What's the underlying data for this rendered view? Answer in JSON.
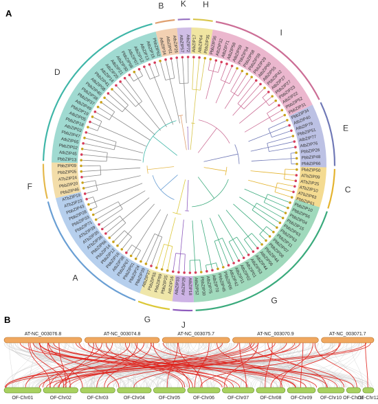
{
  "panels": {
    "a_label": "A",
    "b_label": "B"
  },
  "tree": {
    "clades": [
      {
        "id": "A",
        "start": 201,
        "end": 256,
        "color": "#6a9fd4",
        "bg": "#a9c7ea"
      },
      {
        "id": "F",
        "start": 256,
        "end": 271,
        "color": "#e5b84a",
        "bg": "#f1d79a"
      },
      {
        "id": "D",
        "start": 271,
        "end": 346,
        "color": "#3fb6a8",
        "bg": "#8fd4c9"
      },
      {
        "id": "B",
        "start": 346,
        "end": 355,
        "color": "#e0a070",
        "bg": "#f0c8a4"
      },
      {
        "id": "K",
        "start": 355,
        "end": 361,
        "color": "#9b77c4",
        "bg": "#c8b3e2"
      },
      {
        "id": "H",
        "start": 361,
        "end": 370,
        "color": "#d8c54a",
        "bg": "#ede090"
      },
      {
        "id": "I",
        "start": 370,
        "end": 424,
        "color": "#cc6e96",
        "bg": "#e8aac6"
      },
      {
        "id": "E",
        "start": 424,
        "end": 451,
        "color": "#6f78b6",
        "bg": "#b0b6df"
      },
      {
        "id": "C",
        "start": 451,
        "end": 468,
        "color": "#e4b32e",
        "bg": "#f2d57e"
      },
      {
        "id": "G_big",
        "start": 468,
        "end": 538,
        "color": "#3aaa7c",
        "bg": "#8fd2b0"
      },
      {
        "id": "J",
        "start": 538,
        "end": 547,
        "color": "#8e5bbd",
        "bg": "#c4a6e0"
      },
      {
        "id": "G",
        "start": 547,
        "end": 561,
        "color": "#dcc838",
        "bg": "#ece29a"
      }
    ],
    "clade_labels": [
      {
        "text": "A",
        "angle": 225
      },
      {
        "text": "F",
        "angle": 262
      },
      {
        "text": "D",
        "angle": 305
      },
      {
        "text": "B",
        "angle": 350
      },
      {
        "text": "K",
        "angle": 358
      },
      {
        "text": "H",
        "angle": 366
      },
      {
        "text": "I",
        "angle": 395
      },
      {
        "text": "E",
        "angle": 437
      },
      {
        "text": "C",
        "angle": 459
      },
      {
        "text": "G",
        "angle": 508
      },
      {
        "text": "J",
        "angle": 542
      },
      {
        "text": "G",
        "angle": 555
      }
    ],
    "genes": [
      "AtbZIP17",
      "AtbZIP64",
      "PbbZIP35",
      "PbbZIP36",
      "AtbZIP32",
      "AtbZIP71",
      "AtbZIP58",
      "AtbZIP59",
      "PbbZIP54",
      "PbbZIP58",
      "PbbZIP59",
      "PbbZIP29",
      "AtbZIP60",
      "AtbZIP55",
      "PbbZIP42",
      "AtbZIP27",
      "PbbZIP27",
      "PbbZIP23",
      "AtbZIP22",
      "PbbZIP52",
      "PbbZIP31",
      "PbbZIP34",
      "AtbZIP40",
      "AtbZIP79",
      "PbbZIP51",
      "AtbZIP77",
      "AtbZIP76",
      "PbbZIP26",
      "PbbZIP48",
      "PbbZIP66",
      "PbbZIP50",
      "ATbZIP09",
      "ATbZIP25",
      "ATbZIP10",
      "ATbZIP63",
      "PbbZIP61",
      "PbbZIP10",
      "PbbZIP56",
      "PbbZIP04",
      "PbbZIP15",
      "PbbZIP63",
      "PbbZIP53",
      "PbbZIP11",
      "PbbZIP07",
      "PbbZIP08",
      "PbbZIP44",
      "AtbZIP06",
      "AtbZIP44",
      "AtbZIP53",
      "AtbZIP01",
      "AtbZIP02",
      "AtbZIP11",
      "AtbZIP42",
      "PbbZIP06",
      "PbbZIP45",
      "AtbZIP70",
      "AtbZIP75",
      "PbbZIP30",
      "AtbZIP52",
      "AtbZIP18",
      "AtbZIP29",
      "AtbZIP33",
      "AtbZIP16",
      "PbbZIP25",
      "PbbZIP69",
      "PbbZIP55",
      "AtbZIP37",
      "PbbZIP39",
      "PbbZIP24",
      "PbbZIP01",
      "PbbZIP67",
      "AtbZIP38",
      "PbbZIP16",
      "PbbZIP12",
      "PbbZIP14",
      "PbbZIP66",
      "ATbZIP36",
      "ATbZIP35",
      "ATbZIP39",
      "PbbZIP71",
      "PbbZIP33",
      "PbbZIP28",
      "PbbZIP43",
      "ATbZIP23",
      "ATbZIP19",
      "PbbZIP46",
      "PbbZIP20",
      "ATbZIP24",
      "PbbZIP05",
      "PbbZIP09",
      "PbbZIP13",
      "AtbZIP45",
      "PbbZIP02",
      "AtbZIP65",
      "PbbZIP47",
      "AtbZIP03",
      "PbbZIP18",
      "AtbZIP05",
      "PbbZIP19",
      "AtbZIP49",
      "PbbZIP37",
      "PbbZIP38",
      "PbbZIP40",
      "AtbZIP08",
      "PbbZIP41",
      "AtbZIP14",
      "AtbZIP20",
      "AtbZIP21",
      "AtbZIP30",
      "PbbZIP68",
      "AtbZIP07",
      "AtbZIP12",
      "AtbZIP13",
      "AtbZIP15",
      "PbbZIP62",
      "AtbZIP34",
      "AtbZIP61",
      "AtbZIP26",
      "AtbZIP57",
      "AtbZIP72"
    ]
  },
  "synteny": {
    "top_chromosomes": [
      {
        "name": "AT-NC_003076.8",
        "start": 0.0,
        "end": 0.21
      },
      {
        "name": "AT-NC_003074.8",
        "start": 0.218,
        "end": 0.42
      },
      {
        "name": "AT-NC_003075.7",
        "start": 0.428,
        "end": 0.61
      },
      {
        "name": "AT-NC_003070.9",
        "start": 0.618,
        "end": 0.85
      },
      {
        "name": "AT-NC_003071.7",
        "start": 0.858,
        "end": 1.0
      }
    ],
    "bottom_chromosomes": [
      {
        "name": "OF-Chr01",
        "start": 0.0,
        "end": 0.1
      },
      {
        "name": "OF-Chr02",
        "start": 0.106,
        "end": 0.2
      },
      {
        "name": "OF-Chr03",
        "start": 0.206,
        "end": 0.3
      },
      {
        "name": "OF-Chr04",
        "start": 0.306,
        "end": 0.398
      },
      {
        "name": "OF-Chr05",
        "start": 0.404,
        "end": 0.49
      },
      {
        "name": "OF-Chr06",
        "start": 0.496,
        "end": 0.584
      },
      {
        "name": "OF-Chr07",
        "start": 0.59,
        "end": 0.676
      },
      {
        "name": "OF-Chr08",
        "start": 0.682,
        "end": 0.76
      },
      {
        "name": "OF-Chr09",
        "start": 0.766,
        "end": 0.842
      },
      {
        "name": "OF-Chr10",
        "start": 0.848,
        "end": 0.92
      },
      {
        "name": "OF-Chr11",
        "start": 0.926,
        "end": 0.964
      },
      {
        "name": "OF-Chr12",
        "start": 0.97,
        "end": 1.0
      }
    ],
    "colors": {
      "top_bar": "#f0a860",
      "top_border": "#b06a20",
      "bottom_bar": "#a8d060",
      "bottom_border": "#5a8a20",
      "link_red": "#e0201a",
      "link_gray": "#c8c8c8"
    }
  }
}
